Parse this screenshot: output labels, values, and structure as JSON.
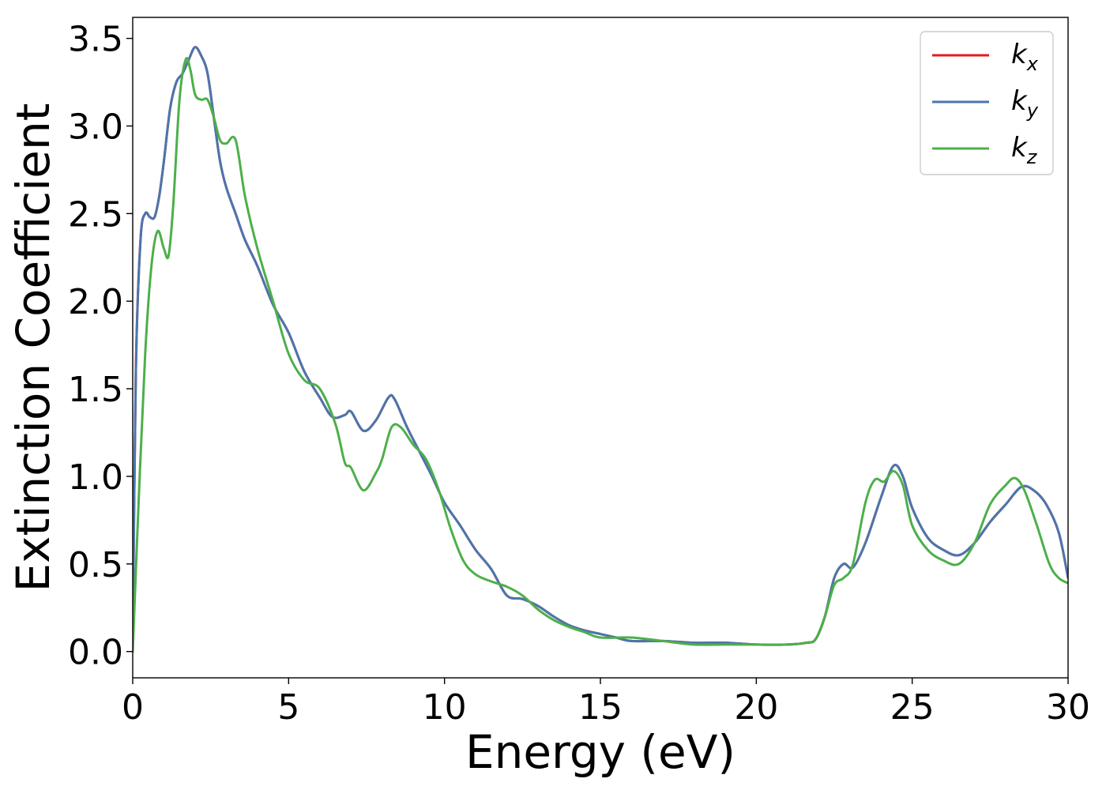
{
  "chart_data": {
    "type": "line",
    "title": "",
    "xlabel": "Energy (eV)",
    "ylabel": "Extinction Coefficient",
    "xlim": [
      0,
      30
    ],
    "ylim": [
      -0.15,
      3.62
    ],
    "xticks": [
      0,
      5,
      10,
      15,
      20,
      25,
      30
    ],
    "xtick_labels": [
      "0",
      "5",
      "10",
      "15",
      "20",
      "25",
      "30"
    ],
    "yticks": [
      0.0,
      0.5,
      1.0,
      1.5,
      2.0,
      2.5,
      3.0,
      3.5
    ],
    "ytick_labels": [
      "0.0",
      "0.5",
      "1.0",
      "1.5",
      "2.0",
      "2.5",
      "3.0",
      "3.5"
    ],
    "grid": false,
    "legend_position": "top-right",
    "series": [
      {
        "name": "k",
        "subscript": "x",
        "color": "#e41a1c",
        "x": [
          0,
          0.1,
          0.25,
          0.4,
          0.55,
          0.7,
          0.85,
          1.0,
          1.2,
          1.4,
          1.6,
          1.8,
          2.0,
          2.2,
          2.4,
          2.6,
          2.8,
          3.0,
          3.3,
          3.6,
          4.0,
          4.5,
          5.0,
          5.5,
          6.0,
          6.4,
          6.8,
          7.0,
          7.4,
          7.8,
          8.2,
          8.4,
          8.8,
          9.2,
          9.6,
          10.0,
          10.5,
          11.0,
          11.5,
          12.0,
          12.5,
          13.0,
          13.5,
          14.0,
          14.5,
          15.0,
          15.5,
          16.0,
          17.0,
          18.0,
          19.0,
          20.0,
          21.0,
          21.6,
          21.9,
          22.2,
          22.5,
          22.8,
          23.1,
          23.5,
          24.0,
          24.4,
          24.7,
          25.0,
          25.5,
          26.0,
          26.5,
          27.0,
          27.5,
          28.0,
          28.5,
          28.9,
          29.3,
          29.7,
          30.0
        ],
        "values": [
          0.0,
          1.6,
          2.35,
          2.5,
          2.48,
          2.48,
          2.6,
          2.8,
          3.1,
          3.25,
          3.3,
          3.38,
          3.45,
          3.4,
          3.3,
          3.05,
          2.8,
          2.65,
          2.5,
          2.35,
          2.2,
          1.98,
          1.82,
          1.6,
          1.45,
          1.34,
          1.35,
          1.37,
          1.26,
          1.32,
          1.45,
          1.44,
          1.28,
          1.14,
          1.0,
          0.85,
          0.72,
          0.58,
          0.47,
          0.32,
          0.3,
          0.26,
          0.2,
          0.15,
          0.12,
          0.1,
          0.08,
          0.06,
          0.06,
          0.05,
          0.05,
          0.04,
          0.04,
          0.05,
          0.07,
          0.2,
          0.42,
          0.5,
          0.48,
          0.62,
          0.88,
          1.06,
          1.0,
          0.82,
          0.65,
          0.58,
          0.55,
          0.62,
          0.74,
          0.84,
          0.94,
          0.92,
          0.84,
          0.68,
          0.42
        ]
      },
      {
        "name": "k",
        "subscript": "y",
        "color": "#4a76ad",
        "x": [
          0,
          0.1,
          0.25,
          0.4,
          0.55,
          0.7,
          0.85,
          1.0,
          1.2,
          1.4,
          1.6,
          1.8,
          2.0,
          2.2,
          2.4,
          2.6,
          2.8,
          3.0,
          3.3,
          3.6,
          4.0,
          4.5,
          5.0,
          5.5,
          6.0,
          6.4,
          6.8,
          7.0,
          7.4,
          7.8,
          8.2,
          8.4,
          8.8,
          9.2,
          9.6,
          10.0,
          10.5,
          11.0,
          11.5,
          12.0,
          12.5,
          13.0,
          13.5,
          14.0,
          14.5,
          15.0,
          15.5,
          16.0,
          17.0,
          18.0,
          19.0,
          20.0,
          21.0,
          21.6,
          21.9,
          22.2,
          22.5,
          22.8,
          23.1,
          23.5,
          24.0,
          24.4,
          24.7,
          25.0,
          25.5,
          26.0,
          26.5,
          27.0,
          27.5,
          28.0,
          28.5,
          28.9,
          29.3,
          29.7,
          30.0
        ],
        "values": [
          0.0,
          1.6,
          2.35,
          2.5,
          2.48,
          2.48,
          2.6,
          2.8,
          3.1,
          3.25,
          3.3,
          3.38,
          3.45,
          3.4,
          3.3,
          3.05,
          2.8,
          2.65,
          2.5,
          2.35,
          2.2,
          1.98,
          1.82,
          1.6,
          1.45,
          1.34,
          1.35,
          1.37,
          1.26,
          1.32,
          1.45,
          1.44,
          1.28,
          1.14,
          1.0,
          0.85,
          0.72,
          0.58,
          0.47,
          0.32,
          0.3,
          0.26,
          0.2,
          0.15,
          0.12,
          0.1,
          0.08,
          0.06,
          0.06,
          0.05,
          0.05,
          0.04,
          0.04,
          0.05,
          0.07,
          0.2,
          0.42,
          0.5,
          0.48,
          0.62,
          0.88,
          1.06,
          1.0,
          0.82,
          0.65,
          0.58,
          0.55,
          0.62,
          0.74,
          0.84,
          0.94,
          0.92,
          0.84,
          0.68,
          0.42
        ]
      },
      {
        "name": "k",
        "subscript": "z",
        "color": "#4daf4a",
        "x": [
          0,
          0.2,
          0.4,
          0.6,
          0.8,
          1.0,
          1.15,
          1.3,
          1.5,
          1.7,
          1.85,
          2.0,
          2.2,
          2.4,
          2.6,
          2.8,
          3.0,
          3.3,
          3.6,
          4.0,
          4.5,
          5.0,
          5.5,
          6.0,
          6.5,
          6.8,
          7.0,
          7.4,
          7.8,
          8.0,
          8.3,
          8.6,
          9.0,
          9.4,
          9.8,
          10.2,
          10.6,
          11.0,
          11.5,
          12.0,
          12.5,
          13.0,
          13.5,
          14.0,
          14.5,
          15.0,
          16.0,
          17.0,
          18.0,
          19.0,
          20.0,
          21.0,
          21.6,
          21.9,
          22.2,
          22.5,
          22.8,
          23.1,
          23.5,
          23.8,
          24.1,
          24.4,
          24.7,
          25.0,
          25.5,
          26.0,
          26.5,
          27.0,
          27.5,
          28.0,
          28.3,
          28.6,
          29.0,
          29.4,
          29.7,
          30.0
        ],
        "values": [
          0.0,
          0.9,
          1.7,
          2.2,
          2.4,
          2.3,
          2.26,
          2.55,
          3.15,
          3.38,
          3.32,
          3.18,
          3.15,
          3.15,
          3.05,
          2.92,
          2.9,
          2.92,
          2.6,
          2.3,
          2.0,
          1.7,
          1.55,
          1.5,
          1.3,
          1.08,
          1.05,
          0.92,
          1.02,
          1.1,
          1.28,
          1.28,
          1.18,
          1.1,
          0.93,
          0.7,
          0.52,
          0.44,
          0.4,
          0.37,
          0.32,
          0.24,
          0.18,
          0.14,
          0.11,
          0.08,
          0.08,
          0.06,
          0.04,
          0.04,
          0.04,
          0.04,
          0.05,
          0.07,
          0.2,
          0.38,
          0.42,
          0.5,
          0.85,
          0.98,
          0.97,
          1.03,
          0.95,
          0.72,
          0.58,
          0.52,
          0.5,
          0.62,
          0.84,
          0.95,
          0.99,
          0.92,
          0.72,
          0.5,
          0.42,
          0.39
        ]
      }
    ]
  }
}
